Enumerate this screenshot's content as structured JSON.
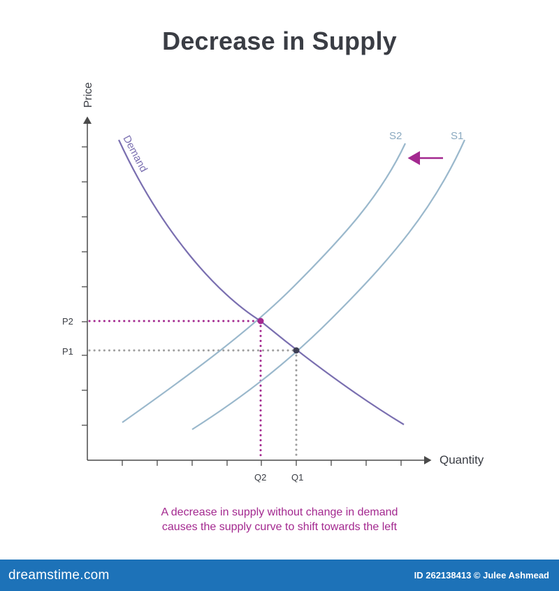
{
  "title": "Decrease in Supply",
  "axes": {
    "y_label": "Price",
    "x_label": "Quantity"
  },
  "curves": {
    "demand_label": "Demand",
    "supply_original_label": "S1",
    "supply_new_label": "S2"
  },
  "points": {
    "p1_label": "P1",
    "p2_label": "P2",
    "q1_label": "Q1",
    "q2_label": "Q2"
  },
  "caption": {
    "line1": "A decrease in supply without change in demand",
    "line2": "causes the supply curve to shift towards the left"
  },
  "footer": {
    "brand": "dreamstime.com",
    "credit": "ID 262138413 © Julee Ashmead"
  },
  "colors": {
    "title": "#3a3d44",
    "axis": "#4a4a4a",
    "demand": "#7a6fb0",
    "supply": "#9ab8cc",
    "highlight": "#a3288f",
    "equilibrium_old": "#3e3f55",
    "guide_gray": "#9e9e9e",
    "footer_bg": "#1d72b8"
  }
}
